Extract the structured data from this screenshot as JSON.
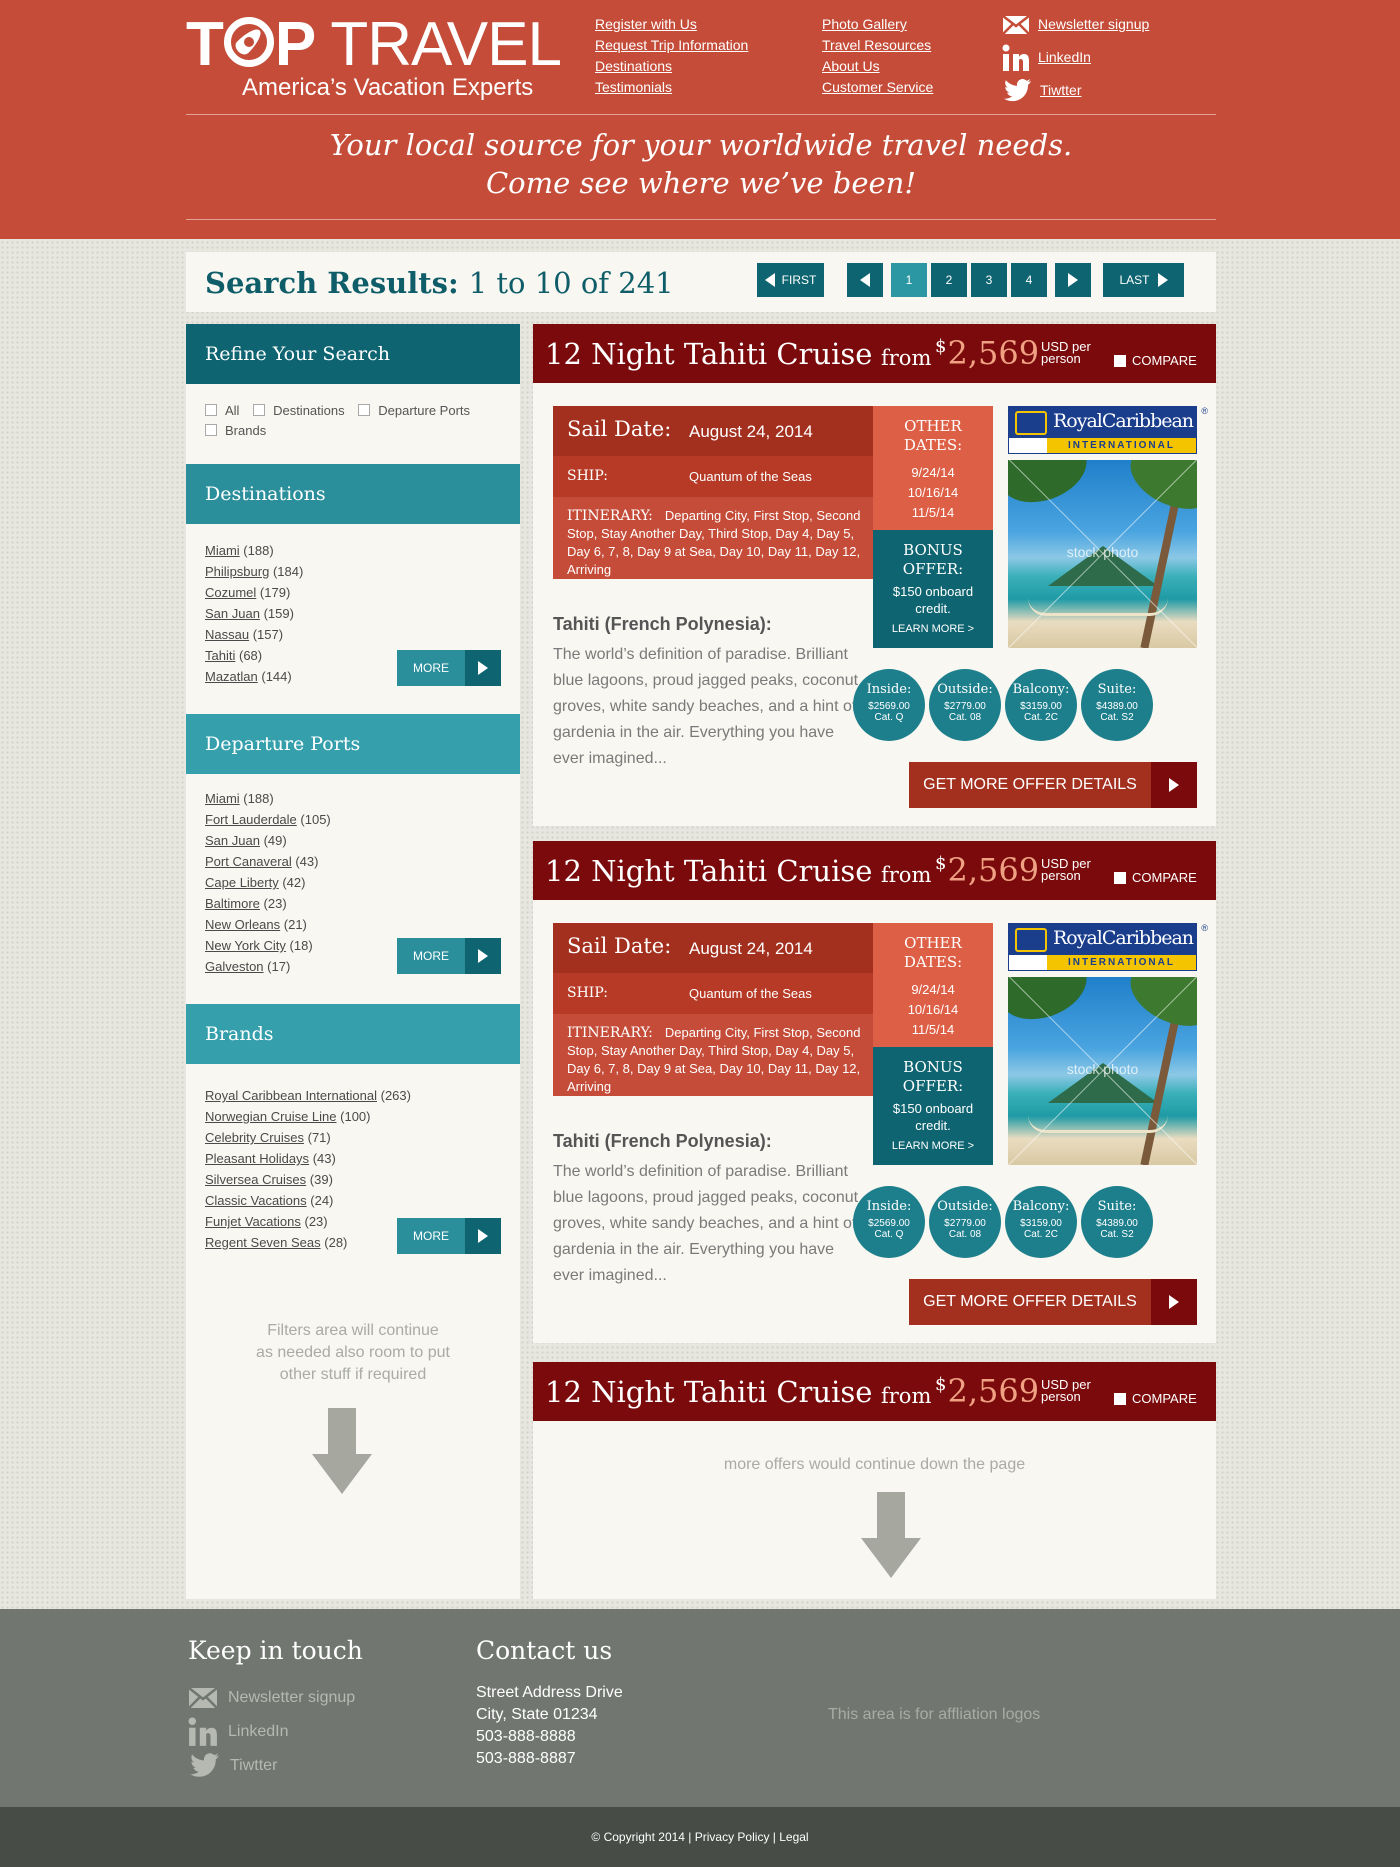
{
  "brand": {
    "logo_top_a": "T",
    "logo_top_b": "P",
    "logo_top_c": "TRAVEL",
    "logo_sub": "America’s Vacation Experts"
  },
  "header": {
    "links_col1": [
      "Register with Us",
      "Request Trip Information",
      "Destinations",
      "Testimonials"
    ],
    "links_col2": [
      "Photo Gallery",
      "Travel Resources",
      "About Us",
      "Customer Service"
    ],
    "social": [
      {
        "icon": "envelope-icon",
        "label": "Newsletter signup"
      },
      {
        "icon": "linkedin-icon",
        "label": "LinkedIn"
      },
      {
        "icon": "twitter-icon",
        "label": "Tiwtter"
      }
    ],
    "tagline_1": "Your local source for your worldwide travel needs.",
    "tagline_2": "Come see where we’ve been!"
  },
  "results": {
    "title": "Search Results:",
    "range": "1 to 10 of 241",
    "pagination": {
      "first": "FIRST",
      "last": "LAST",
      "pages": [
        "1",
        "2",
        "3",
        "4"
      ],
      "current": "1"
    }
  },
  "sidebar": {
    "refine": {
      "title": "Refine Your Search",
      "options": [
        "All",
        "Destinations",
        "Departure Ports",
        "Brands"
      ]
    },
    "destinations": {
      "title": "Destinations",
      "items": [
        {
          "name": "Miami",
          "count": "(188)"
        },
        {
          "name": "Philipsburg",
          "count": "(184)"
        },
        {
          "name": "Cozumel",
          "count": "(179)"
        },
        {
          "name": "San Juan",
          "count": "(159)"
        },
        {
          "name": "Nassau",
          "count": "(157)"
        },
        {
          "name": "Tahiti",
          "count": "(68)"
        },
        {
          "name": "Mazatlan",
          "count": "(144)"
        }
      ],
      "more": "MORE"
    },
    "ports": {
      "title": "Departure Ports",
      "items": [
        {
          "name": "Miami",
          "count": "(188)"
        },
        {
          "name": "Fort Lauderdale",
          "count": "(105)"
        },
        {
          "name": "San Juan",
          "count": "(49)"
        },
        {
          "name": "Port Canaveral",
          "count": "(43)"
        },
        {
          "name": "Cape Liberty",
          "count": "(42)"
        },
        {
          "name": "Baltimore",
          "count": "(23)"
        },
        {
          "name": "New Orleans",
          "count": "(21)"
        },
        {
          "name": "New York City",
          "count": "(18)"
        },
        {
          "name": "Galveston",
          "count": "(17)"
        }
      ],
      "more": "MORE"
    },
    "brands": {
      "title": "Brands",
      "items": [
        {
          "name": "Royal Caribbean International",
          "count": "(263)"
        },
        {
          "name": "Norwegian Cruise Line",
          "count": "(100)"
        },
        {
          "name": "Celebrity Cruises",
          "count": "(71)"
        },
        {
          "name": "Pleasant Holidays",
          "count": "(43)"
        },
        {
          "name": "Silversea Cruises",
          "count": "(39)"
        },
        {
          "name": "Classic Vacations",
          "count": "(24)"
        },
        {
          "name": "Funjet Vacations",
          "count": "(23)"
        },
        {
          "name": "Regent Seven Seas",
          "count": "(28)"
        }
      ],
      "more": "MORE"
    },
    "note": [
      "Filters area will continue",
      "as needed also room to put",
      "other stuff if required"
    ]
  },
  "offers": [
    {
      "title": "12 Night Tahiti Cruise",
      "from": "from",
      "currency": "$",
      "price": "2,569",
      "usd_note": "USD per person",
      "compare": "COMPARE",
      "sail_label": "Sail Date:",
      "sail_date": "August 24, 2014",
      "ship_label": "SHIP:",
      "ship": "Quantum of the Seas",
      "itinerary_label": "ITINERARY:",
      "itinerary": "Departing City, First Stop, Second Stop, Stay Another Day, Third Stop, Day 4, Day 5, Day 6, 7, 8, Day 9 at Sea, Day 10, Day 11, Day 12, Arriving",
      "other_label": "OTHER DATES:",
      "other_dates": [
        "9/24/14",
        "10/16/14",
        "11/5/14"
      ],
      "bonus_label": "BONUS OFFER:",
      "bonus_text": "$150 onboard credit.",
      "learn_more": "LEARN MORE >",
      "brand_logo": {
        "name": "RoyalCaribbean",
        "sub": "INTERNATIONAL",
        "reg": "®"
      },
      "photo_watermark": "stock photo",
      "destination_title": "Tahiti (French Polynesia):",
      "description": "The world’s definition of paradise. Brilliant blue lagoons, proud jagged peaks, coconut groves, white sandy beaches, and a hint of gardenia in the air. Everything you have ever imagined...",
      "cabins": [
        {
          "type": "Inside:",
          "price": "$2569.00",
          "cat": "Cat. Q"
        },
        {
          "type": "Outside:",
          "price": "$2779.00",
          "cat": "Cat. 08"
        },
        {
          "type": "Balcony:",
          "price": "$3159.00",
          "cat": "Cat. 2C"
        },
        {
          "type": "Suite:",
          "price": "$4389.00",
          "cat": "Cat. S2"
        }
      ],
      "details_button": "GET MORE OFFER DETAILS"
    },
    {
      "title": "12 Night Tahiti Cruise",
      "from": "from",
      "currency": "$",
      "price": "2,569",
      "usd_note": "USD per person",
      "compare": "COMPARE",
      "sail_label": "Sail Date:",
      "sail_date": "August 24, 2014",
      "ship_label": "SHIP:",
      "ship": "Quantum of the Seas",
      "itinerary_label": "ITINERARY:",
      "itinerary": "Departing City, First Stop, Second Stop, Stay Another Day, Third Stop, Day 4, Day 5, Day 6, 7, 8, Day 9 at Sea, Day 10, Day 11, Day 12, Arriving",
      "other_label": "OTHER DATES:",
      "other_dates": [
        "9/24/14",
        "10/16/14",
        "11/5/14"
      ],
      "bonus_label": "BONUS OFFER:",
      "bonus_text": "$150 onboard credit.",
      "learn_more": "LEARN MORE >",
      "brand_logo": {
        "name": "RoyalCaribbean",
        "sub": "INTERNATIONAL",
        "reg": "®"
      },
      "photo_watermark": "stock photo",
      "destination_title": "Tahiti (French Polynesia):",
      "description": "The world’s definition of paradise. Brilliant blue lagoons, proud jagged peaks, coconut groves, white sandy beaches, and a hint of gardenia in the air. Everything you have ever imagined...",
      "cabins": [
        {
          "type": "Inside:",
          "price": "$2569.00",
          "cat": "Cat. Q"
        },
        {
          "type": "Outside:",
          "price": "$2779.00",
          "cat": "Cat. 08"
        },
        {
          "type": "Balcony:",
          "price": "$3159.00",
          "cat": "Cat. 2C"
        },
        {
          "type": "Suite:",
          "price": "$4389.00",
          "cat": "Cat. S2"
        }
      ],
      "details_button": "GET MORE OFFER DETAILS"
    },
    {
      "title": "12 Night Tahiti Cruise",
      "from": "from",
      "currency": "$",
      "price": "2,569",
      "usd_note": "USD per person",
      "compare": "COMPARE",
      "more_note": "more offers would continue down the page"
    }
  ],
  "footer": {
    "keep_title": "Keep in touch",
    "social": [
      "Newsletter signup",
      "LinkedIn",
      "Tiwtter"
    ],
    "contact_title": "Contact us",
    "address": [
      "Street Address Drive",
      "City, State 01234",
      "503-888-8888",
      "503-888-8887"
    ],
    "affiliation": "This area is for affliation logos",
    "copyright": "© Copyright 2014 | Privacy Policy | Legal"
  },
  "colors": {
    "header_red": "#c44c38",
    "offer_header": "#7a0a0b",
    "teal_dark": "#0e6470",
    "teal_mid": "#2b8f9b",
    "teal_light": "#35a0ac",
    "price_orange": "#f0a183",
    "footer_gray": "#717670",
    "copyright_bar": "#474c47"
  }
}
